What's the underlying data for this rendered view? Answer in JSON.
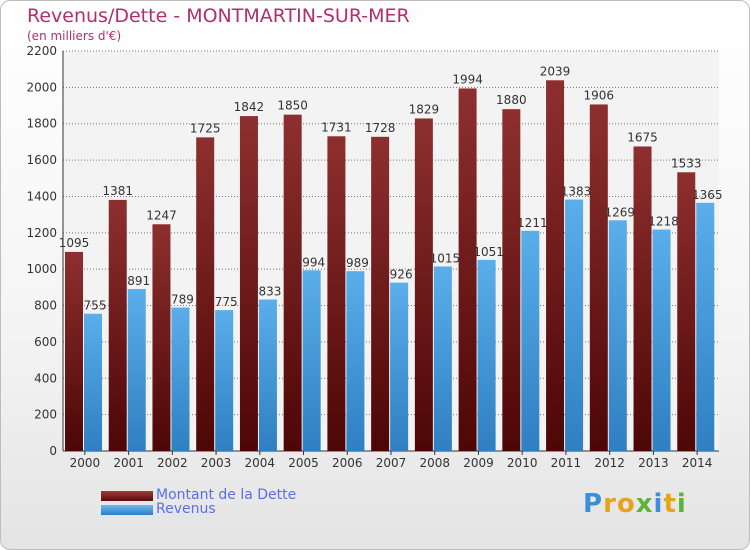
{
  "chart_data": {
    "type": "bar",
    "title": "Revenus/Dette - MONTMARTIN-SUR-MER",
    "subtitle": "(en milliers d'€)",
    "categories": [
      "2000",
      "2001",
      "2002",
      "2003",
      "2004",
      "2005",
      "2006",
      "2007",
      "2008",
      "2009",
      "2010",
      "2011",
      "2012",
      "2013",
      "2014"
    ],
    "series": [
      {
        "name": "Montant de la Dette",
        "color": "#8b1c1c",
        "values": [
          1095,
          1381,
          1247,
          1725,
          1842,
          1850,
          1731,
          1728,
          1829,
          1994,
          1880,
          2039,
          1906,
          1675,
          1533
        ]
      },
      {
        "name": "Revenus",
        "color": "#4a9fe0",
        "values": [
          755,
          891,
          789,
          775,
          833,
          994,
          989,
          926,
          1015,
          1051,
          1211,
          1383,
          1269,
          1218,
          1365
        ]
      }
    ],
    "ylim": [
      0,
      2200
    ],
    "yticks": [
      0,
      200,
      400,
      600,
      800,
      1000,
      1200,
      1400,
      1600,
      1800,
      2000,
      2200
    ],
    "grid": true,
    "legend_position": "bottom-left"
  },
  "legend": {
    "items": [
      {
        "label": "Montant de la Dette"
      },
      {
        "label": "Revenus"
      }
    ]
  },
  "brand": {
    "letters": [
      "P",
      "r",
      "o",
      "x",
      "i",
      "t",
      "i"
    ],
    "colors": [
      "#3a8fd8",
      "#e9a21c",
      "#e9a21c",
      "#5bb53a",
      "#3a8fd8",
      "#e9a21c",
      "#5bb53a"
    ]
  }
}
